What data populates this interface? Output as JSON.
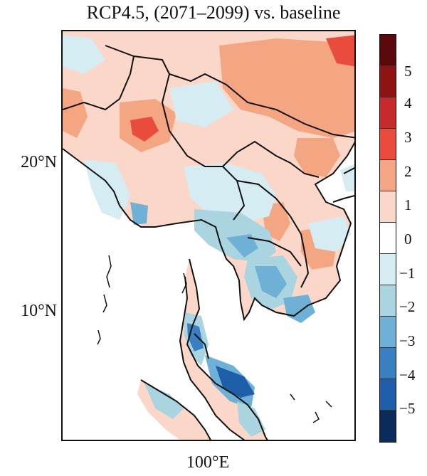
{
  "title": "RCP4.5, (2071–2099) vs. baseline",
  "axes": {
    "lat_labels": [
      "20°N",
      "10°N"
    ],
    "lon_labels": [
      "100°E"
    ]
  },
  "colorbar": {
    "labels": [
      "5",
      "4",
      "3",
      "2",
      "1",
      "0",
      "−1",
      "−2",
      "−3",
      "−4",
      "−5"
    ],
    "colors": [
      "#5a0a0a",
      "#8e1414",
      "#c62a2a",
      "#e94b3c",
      "#f4a582",
      "#fbd7c9",
      "#ffffff",
      "#d5ecf2",
      "#a9d4e0",
      "#6fb0d6",
      "#3a7fc1",
      "#1f5ea8",
      "#0b2b5c"
    ]
  },
  "map": {
    "region": "Mainland Southeast Asia",
    "colors": {
      "warm_light": "#fbd7c9",
      "warm_mid": "#f4a582",
      "warm_strong": "#e94b3c",
      "cool_light": "#d5ecf2",
      "cool_mid": "#a9d4e0",
      "cool_strong": "#6fb0d6",
      "cool_deep": "#3a7fc1",
      "cool_deepest": "#1f5ea8",
      "ocean": "#ffffff",
      "border": "#111111"
    }
  }
}
